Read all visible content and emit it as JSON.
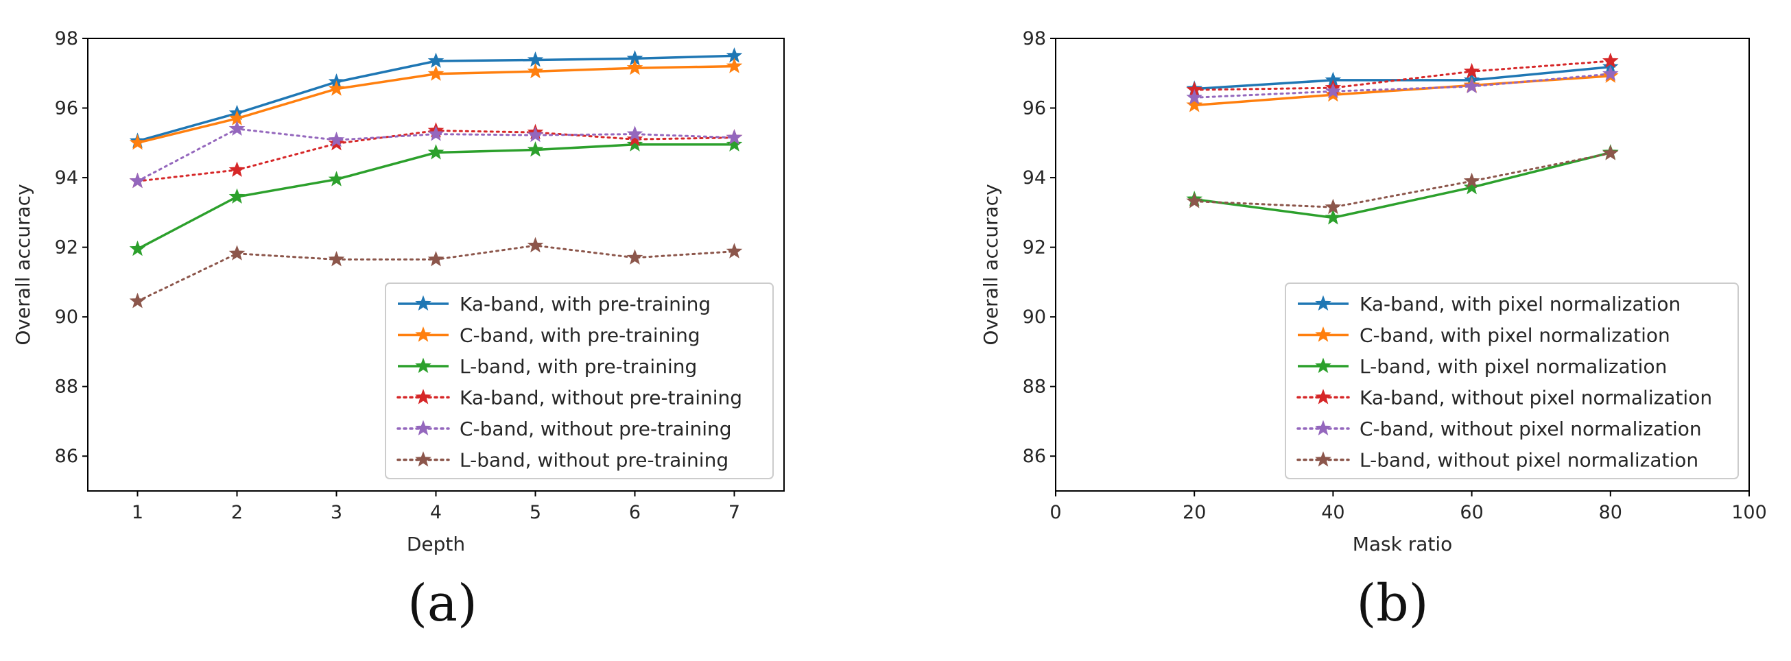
{
  "chart_data": [
    {
      "type": "line",
      "panel_label": "(a)",
      "xlabel": "Depth",
      "ylabel": "Overall accuracy",
      "xlim": [
        0.5,
        7.5
      ],
      "ylim": [
        85,
        98
      ],
      "xticks": [
        1,
        2,
        3,
        4,
        5,
        6,
        7
      ],
      "yticks": [
        86,
        88,
        90,
        92,
        94,
        96,
        98
      ],
      "legend_position": "lower-right",
      "series": [
        {
          "name": "Ka-band, with pre-training",
          "color": "#1f77b4",
          "style": "solid",
          "x": [
            1,
            2,
            3,
            4,
            5,
            6,
            7
          ],
          "y": [
            95.05,
            95.85,
            96.75,
            97.35,
            97.38,
            97.42,
            97.5
          ]
        },
        {
          "name": "C-band, with pre-training",
          "color": "#ff7f0e",
          "style": "solid",
          "x": [
            1,
            2,
            3,
            4,
            5,
            6,
            7
          ],
          "y": [
            95.0,
            95.7,
            96.55,
            96.98,
            97.05,
            97.15,
            97.2
          ]
        },
        {
          "name": "L-band, with pre-training",
          "color": "#2ca02c",
          "style": "solid",
          "x": [
            1,
            2,
            3,
            4,
            5,
            6,
            7
          ],
          "y": [
            91.95,
            93.45,
            93.95,
            94.72,
            94.8,
            94.95,
            94.95
          ]
        },
        {
          "name": "Ka-band, without pre-training",
          "color": "#d62728",
          "style": "dotted",
          "x": [
            1,
            2,
            3,
            4,
            5,
            6,
            7
          ],
          "y": [
            93.9,
            94.22,
            94.98,
            95.35,
            95.3,
            95.1,
            95.15
          ]
        },
        {
          "name": "C-band, without pre-training",
          "color": "#9467bd",
          "style": "dotted",
          "x": [
            1,
            2,
            3,
            4,
            5,
            6,
            7
          ],
          "y": [
            93.9,
            95.4,
            95.08,
            95.25,
            95.22,
            95.25,
            95.15
          ]
        },
        {
          "name": "L-band, without pre-training",
          "color": "#8c564b",
          "style": "dotted",
          "x": [
            1,
            2,
            3,
            4,
            5,
            6,
            7
          ],
          "y": [
            90.45,
            91.82,
            91.65,
            91.65,
            92.05,
            91.7,
            91.88
          ]
        }
      ]
    },
    {
      "type": "line",
      "panel_label": "(b)",
      "xlabel": "Mask ratio",
      "ylabel": "Overall accuracy",
      "xlim": [
        0,
        100
      ],
      "ylim": [
        85,
        98
      ],
      "xticks": [
        0,
        20,
        40,
        60,
        80,
        100
      ],
      "yticks": [
        86,
        88,
        90,
        92,
        94,
        96,
        98
      ],
      "legend_position": "lower-right",
      "series": [
        {
          "name": "Ka-band, with pixel normalization",
          "color": "#1f77b4",
          "style": "solid",
          "x": [
            20,
            40,
            60,
            80
          ],
          "y": [
            96.55,
            96.8,
            96.8,
            97.18
          ]
        },
        {
          "name": "C-band, with pixel normalization",
          "color": "#ff7f0e",
          "style": "solid",
          "x": [
            20,
            40,
            60,
            80
          ],
          "y": [
            96.08,
            96.38,
            96.65,
            96.92
          ]
        },
        {
          "name": "L-band, with pixel normalization",
          "color": "#2ca02c",
          "style": "solid",
          "x": [
            20,
            40,
            60,
            80
          ],
          "y": [
            93.38,
            92.85,
            93.72,
            94.72
          ]
        },
        {
          "name": "Ka-band, without pixel normalization",
          "color": "#d62728",
          "style": "dotted",
          "x": [
            20,
            40,
            60,
            80
          ],
          "y": [
            96.52,
            96.58,
            97.05,
            97.35
          ]
        },
        {
          "name": "C-band, without pixel normalization",
          "color": "#9467bd",
          "style": "dotted",
          "x": [
            20,
            40,
            60,
            80
          ],
          "y": [
            96.3,
            96.48,
            96.62,
            96.98
          ]
        },
        {
          "name": "L-band, without pixel normalization",
          "color": "#8c564b",
          "style": "dotted",
          "x": [
            20,
            40,
            60,
            80
          ],
          "y": [
            93.32,
            93.15,
            93.9,
            94.7
          ]
        }
      ]
    }
  ]
}
